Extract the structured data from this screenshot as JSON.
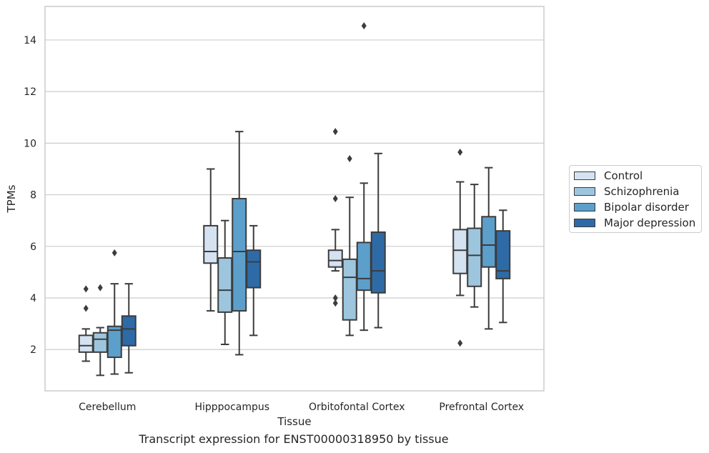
{
  "chart_data": {
    "type": "box",
    "xlabel": "Tissue",
    "ylabel": "TPMs",
    "caption": "Transcript expression for ENST00000318950 by tissue",
    "ylim": [
      0.4,
      15.3
    ],
    "yticks": [
      2,
      4,
      6,
      8,
      10,
      12,
      14
    ],
    "grid": true,
    "legend_position": "right",
    "categories": [
      "Cerebellum",
      "Hipppocampus",
      "Orbitofontal Cortex",
      "Prefrontal Cortex"
    ],
    "series": [
      {
        "name": "Control",
        "color": "#d4e2f1",
        "boxes": [
          {
            "whisker_low": 1.55,
            "q1": 1.9,
            "median": 2.15,
            "q3": 2.55,
            "whisker_high": 2.8,
            "outliers": [
              3.6,
              4.35
            ]
          },
          {
            "whisker_low": 3.5,
            "q1": 5.35,
            "median": 5.8,
            "q3": 6.8,
            "whisker_high": 9.0,
            "outliers": []
          },
          {
            "whisker_low": 5.05,
            "q1": 5.2,
            "median": 5.45,
            "q3": 5.85,
            "whisker_high": 6.65,
            "outliers": [
              3.8,
              4.0,
              7.85,
              10.45
            ]
          },
          {
            "whisker_low": 4.1,
            "q1": 4.95,
            "median": 5.85,
            "q3": 6.65,
            "whisker_high": 8.5,
            "outliers": [
              2.25,
              9.65
            ]
          }
        ]
      },
      {
        "name": "Schizophrenia",
        "color": "#9dc6de",
        "boxes": [
          {
            "whisker_low": 1.0,
            "q1": 1.9,
            "median": 2.4,
            "q3": 2.65,
            "whisker_high": 2.85,
            "outliers": [
              4.4
            ]
          },
          {
            "whisker_low": 2.2,
            "q1": 3.45,
            "median": 4.3,
            "q3": 5.55,
            "whisker_high": 7.0,
            "outliers": []
          },
          {
            "whisker_low": 2.55,
            "q1": 3.15,
            "median": 4.8,
            "q3": 5.5,
            "whisker_high": 7.9,
            "outliers": [
              9.4
            ]
          },
          {
            "whisker_low": 3.65,
            "q1": 4.45,
            "median": 5.65,
            "q3": 6.7,
            "whisker_high": 8.4,
            "outliers": []
          }
        ]
      },
      {
        "name": "Bipolar disorder",
        "color": "#5c9fcb",
        "boxes": [
          {
            "whisker_low": 1.05,
            "q1": 1.7,
            "median": 2.75,
            "q3": 2.9,
            "whisker_high": 4.55,
            "outliers": [
              5.75
            ]
          },
          {
            "whisker_low": 1.8,
            "q1": 3.5,
            "median": 5.8,
            "q3": 7.85,
            "whisker_high": 10.45,
            "outliers": []
          },
          {
            "whisker_low": 2.75,
            "q1": 4.3,
            "median": 4.75,
            "q3": 6.15,
            "whisker_high": 8.45,
            "outliers": [
              14.55
            ]
          },
          {
            "whisker_low": 2.8,
            "q1": 5.2,
            "median": 6.05,
            "q3": 7.15,
            "whisker_high": 9.05,
            "outliers": []
          }
        ]
      },
      {
        "name": "Major depression",
        "color": "#2e6aa6",
        "boxes": [
          {
            "whisker_low": 1.1,
            "q1": 2.15,
            "median": 2.8,
            "q3": 3.3,
            "whisker_high": 4.55,
            "outliers": []
          },
          {
            "whisker_low": 2.55,
            "q1": 4.4,
            "median": 5.4,
            "q3": 5.85,
            "whisker_high": 6.8,
            "outliers": []
          },
          {
            "whisker_low": 2.85,
            "q1": 4.2,
            "median": 5.05,
            "q3": 6.55,
            "whisker_high": 9.6,
            "outliers": []
          },
          {
            "whisker_low": 3.05,
            "q1": 4.75,
            "median": 5.05,
            "q3": 6.6,
            "whisker_high": 7.4,
            "outliers": []
          }
        ]
      }
    ]
  }
}
